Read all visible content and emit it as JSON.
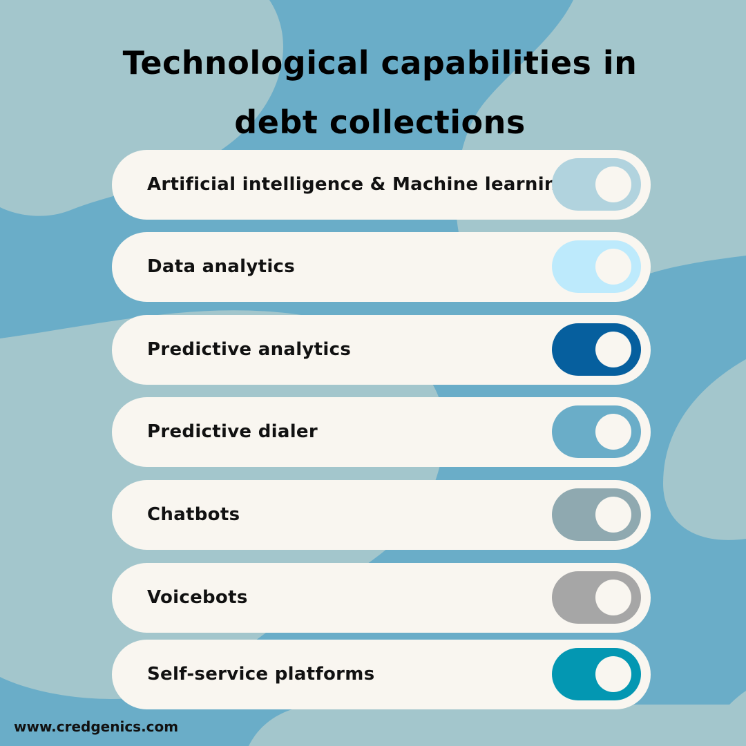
{
  "title": {
    "line1": "Technological capabilities in",
    "line2": "debt collections"
  },
  "items": [
    {
      "label": "Artificial intelligence & Machine learning",
      "toggle_color": "#b1d3de",
      "state": "on"
    },
    {
      "label": "Data analytics",
      "toggle_color": "#bdeafc",
      "state": "on"
    },
    {
      "label": "Predictive analytics",
      "toggle_color": "#065f9e",
      "state": "on"
    },
    {
      "label": "Predictive dialer",
      "toggle_color": "#6aadc8",
      "state": "on"
    },
    {
      "label": "Chatbots",
      "toggle_color": "#8fa9b0",
      "state": "on"
    },
    {
      "label": "Voicebots",
      "toggle_color": "#a6a6a6",
      "state": "on"
    },
    {
      "label": "Self-service platforms",
      "toggle_color": "#0397b2",
      "state": "on"
    }
  ],
  "footer": {
    "website": "www.credgenics.com"
  },
  "colors": {
    "background": "#6aadc8",
    "blob": "#a3c6cc",
    "pill": "#f9f6f0"
  }
}
